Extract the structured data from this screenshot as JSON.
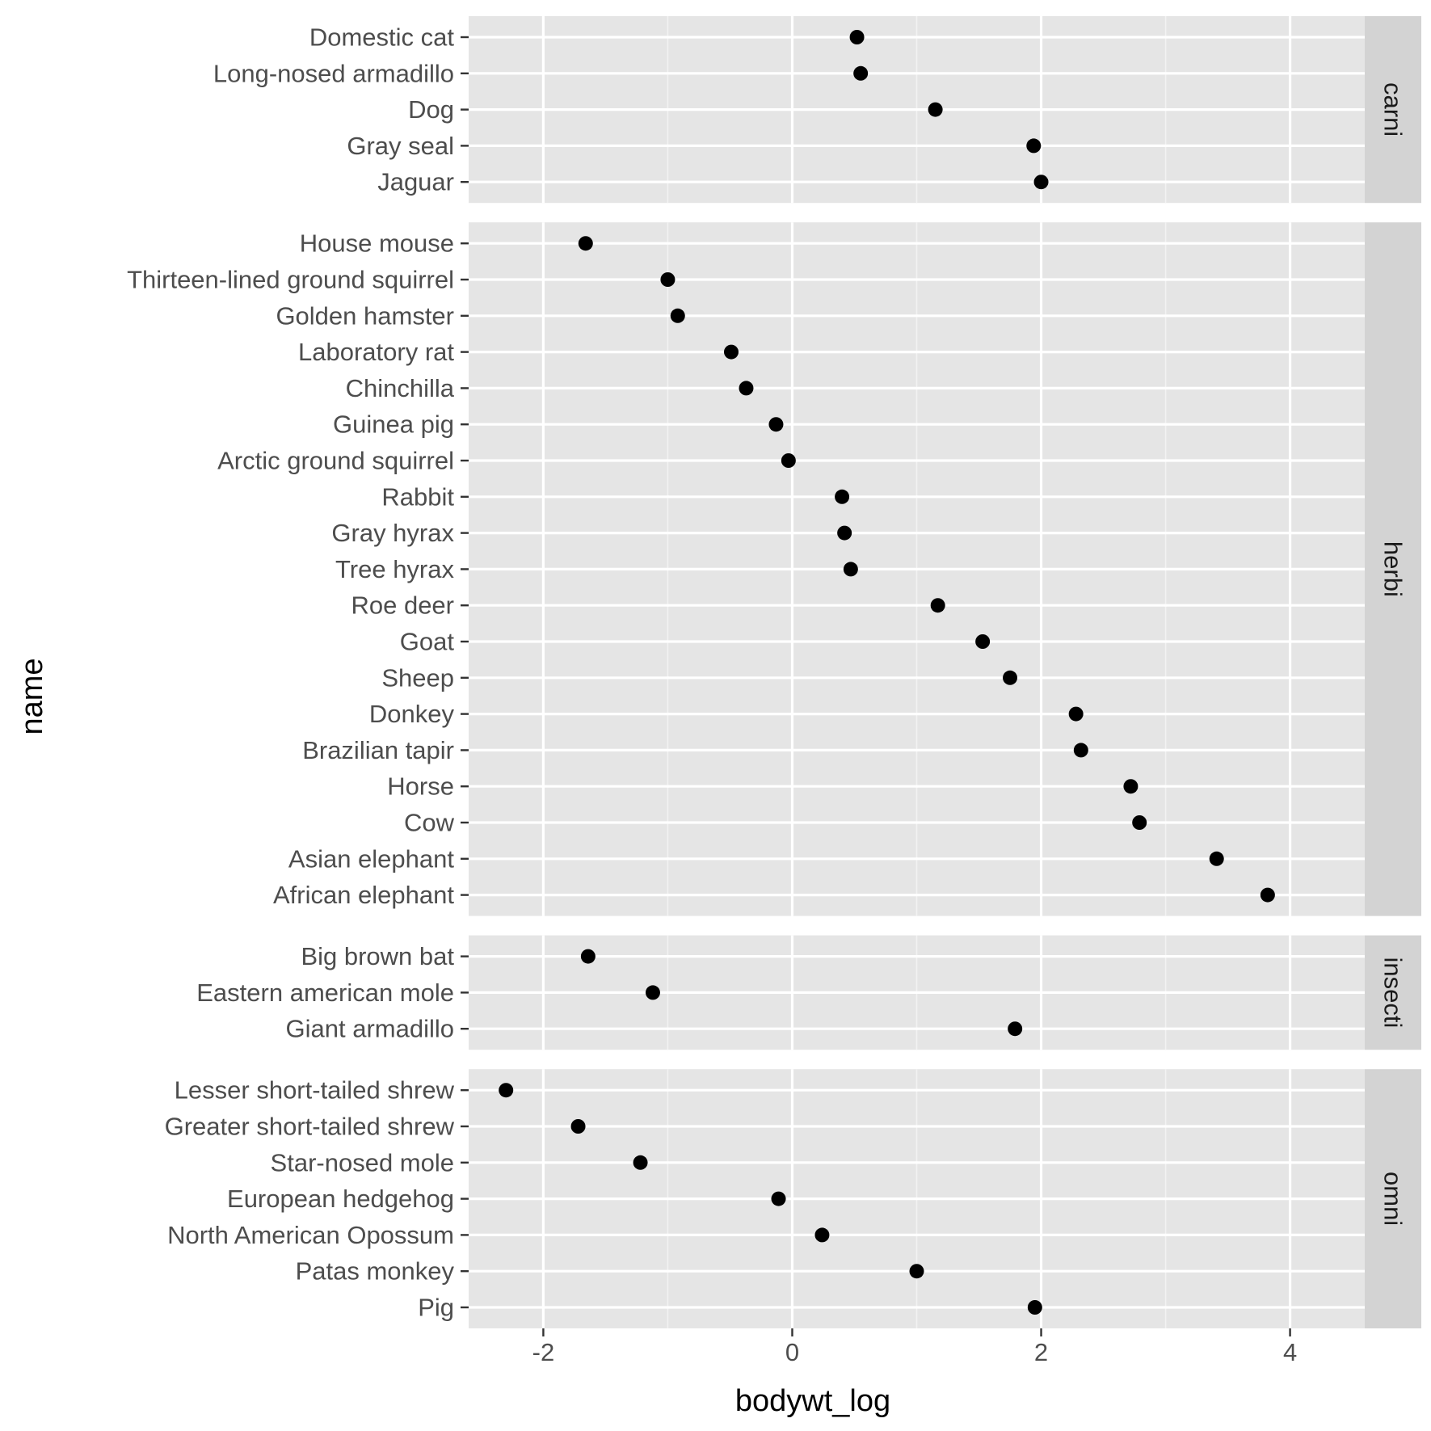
{
  "chart_data": {
    "type": "scatter",
    "xlabel": "bodywt_log",
    "ylabel": "name",
    "xlim": [
      -2.6,
      4.6
    ],
    "x_ticks": [
      -2,
      0,
      2,
      4
    ],
    "x_tick_labels": [
      "-2",
      "0",
      "2",
      "4"
    ],
    "grid": true,
    "legend": "none",
    "point_color": "#000000",
    "panel_background": "#e5e5e5",
    "strip_background": "#d3d3d3",
    "facets": [
      {
        "label": "carni",
        "points": [
          {
            "name": "Domestic cat",
            "x": 0.52
          },
          {
            "name": "Long-nosed armadillo",
            "x": 0.55
          },
          {
            "name": "Dog",
            "x": 1.15
          },
          {
            "name": "Gray seal",
            "x": 1.94
          },
          {
            "name": "Jaguar",
            "x": 2.0
          }
        ]
      },
      {
        "label": "herbi",
        "points": [
          {
            "name": "House mouse",
            "x": -1.66
          },
          {
            "name": "Thirteen-lined ground squirrel",
            "x": -1.0
          },
          {
            "name": "Golden hamster",
            "x": -0.92
          },
          {
            "name": "Laboratory rat",
            "x": -0.49
          },
          {
            "name": "Chinchilla",
            "x": -0.37
          },
          {
            "name": "Guinea pig",
            "x": -0.13
          },
          {
            "name": "Arctic ground squirrel",
            "x": -0.03
          },
          {
            "name": "Rabbit",
            "x": 0.4
          },
          {
            "name": "Gray hyrax",
            "x": 0.42
          },
          {
            "name": "Tree hyrax",
            "x": 0.47
          },
          {
            "name": "Roe deer",
            "x": 1.17
          },
          {
            "name": "Goat",
            "x": 1.53
          },
          {
            "name": "Sheep",
            "x": 1.75
          },
          {
            "name": "Donkey",
            "x": 2.28
          },
          {
            "name": "Brazilian tapir",
            "x": 2.32
          },
          {
            "name": "Horse",
            "x": 2.72
          },
          {
            "name": "Cow",
            "x": 2.79
          },
          {
            "name": "Asian elephant",
            "x": 3.41
          },
          {
            "name": "African elephant",
            "x": 3.82
          }
        ]
      },
      {
        "label": "insecti",
        "points": [
          {
            "name": "Big brown bat",
            "x": -1.64
          },
          {
            "name": "Eastern american mole",
            "x": -1.12
          },
          {
            "name": "Giant armadillo",
            "x": 1.79
          }
        ]
      },
      {
        "label": "omni",
        "points": [
          {
            "name": "Lesser short-tailed shrew",
            "x": -2.3
          },
          {
            "name": "Greater short-tailed shrew",
            "x": -1.72
          },
          {
            "name": "Star-nosed mole",
            "x": -1.22
          },
          {
            "name": "European hedgehog",
            "x": -0.11
          },
          {
            "name": "North American Opossum",
            "x": 0.24
          },
          {
            "name": "Patas monkey",
            "x": 1.0
          },
          {
            "name": "Pig",
            "x": 1.95
          }
        ]
      }
    ]
  }
}
